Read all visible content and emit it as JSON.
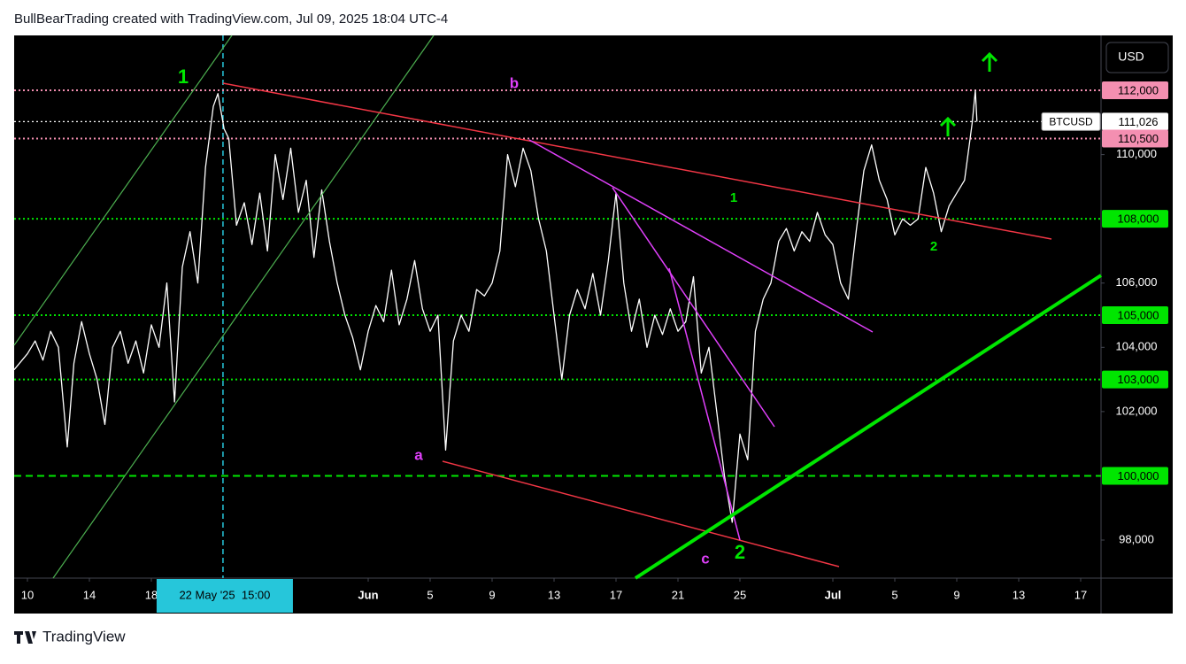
{
  "header": "BullBearTrading created with TradingView.com, Jul 09, 2025 18:04 UTC-4",
  "footer": "TradingView",
  "currency_button": "USD",
  "annotations": [
    {
      "text": "1"
    },
    {
      "text": "b"
    },
    {
      "text": "1"
    },
    {
      "text": "2"
    },
    {
      "text": "a"
    },
    {
      "text": "c"
    },
    {
      "text": "2"
    }
  ],
  "chart_data": {
    "type": "line",
    "x": [
      -0.86,
      0,
      0.5,
      1,
      1.5,
      2,
      2.57,
      3,
      3.5,
      4,
      4.5,
      5,
      5.5,
      6,
      6.5,
      7,
      7.5,
      8,
      8.5,
      9,
      9.5,
      10,
      10.5,
      11,
      11.5,
      12,
      12.3,
      12.7,
      13,
      13.5,
      14,
      14.5,
      15,
      15.5,
      16,
      16.5,
      17,
      17.5,
      18,
      18.5,
      19,
      19.5,
      20,
      20.5,
      21,
      21.5,
      22,
      22.5,
      23,
      23.5,
      24,
      24.5,
      25,
      25.5,
      26,
      26.5,
      27,
      27.5,
      28,
      28.5,
      29,
      29.5,
      30,
      30.5,
      31,
      31.5,
      32,
      32.5,
      33,
      33.5,
      34,
      34.5,
      35,
      35.5,
      36,
      36.5,
      37,
      37.5,
      38,
      38.5,
      39,
      39.5,
      40,
      40.5,
      41,
      41.5,
      42,
      42.5,
      43,
      43.5,
      44,
      44.5,
      45,
      45.5,
      46,
      46.5,
      47,
      47.5,
      48,
      48.5,
      49,
      49.5,
      50,
      50.5,
      51,
      51.5,
      52,
      52.5,
      53,
      53.5,
      54,
      54.5,
      55,
      55.5,
      56,
      56.5,
      57,
      57.5,
      58,
      58.5,
      59,
      59.5,
      60,
      60.5,
      61,
      61.2,
      61.3
    ],
    "series": [
      {
        "name": "BTCUSD",
        "color": "#ffffff",
        "values": [
          103300,
          103800,
          104200,
          103600,
          104500,
          104000,
          100900,
          103500,
          104800,
          103800,
          103000,
          101600,
          104000,
          104500,
          103500,
          104200,
          103200,
          104700,
          104000,
          106000,
          102300,
          106500,
          107600,
          106000,
          109600,
          111500,
          111900,
          110800,
          110500,
          107800,
          108500,
          107200,
          108800,
          107000,
          110000,
          108600,
          110200,
          108200,
          109200,
          106800,
          108900,
          107300,
          106000,
          105000,
          104300,
          103300,
          104500,
          105300,
          104800,
          106400,
          104700,
          105500,
          106700,
          105200,
          104500,
          105000,
          100800,
          104200,
          105000,
          104500,
          105800,
          105600,
          106000,
          107000,
          110000,
          109000,
          110200,
          109500,
          108000,
          107000,
          105000,
          103000,
          105000,
          105800,
          105200,
          106300,
          105000,
          106700,
          108800,
          106000,
          104500,
          105500,
          104000,
          105000,
          104400,
          105200,
          104500,
          104800,
          106200,
          103200,
          104000,
          102000,
          100000,
          98550,
          101300,
          100500,
          104500,
          105500,
          106000,
          107300,
          107700,
          107000,
          107600,
          107300,
          108200,
          107500,
          107200,
          106000,
          105500,
          107600,
          109500,
          110300,
          109200,
          108600,
          107500,
          108000,
          107800,
          108000,
          109600,
          108800,
          107600,
          108400,
          108800,
          109200,
          111000,
          112000,
          111026
        ]
      }
    ],
    "xlim": [
      -0.857,
      69.314
    ],
    "xticks": [
      {
        "value": 0,
        "label": "10"
      },
      {
        "value": 4,
        "label": "14"
      },
      {
        "value": 8,
        "label": "18"
      },
      {
        "value": 22,
        "label": "Jun"
      },
      {
        "value": 26,
        "label": "5"
      },
      {
        "value": 30,
        "label": "9"
      },
      {
        "value": 34,
        "label": "13"
      },
      {
        "value": 38,
        "label": "17"
      },
      {
        "value": 42,
        "label": "21"
      },
      {
        "value": 46,
        "label": "25"
      },
      {
        "value": 52,
        "label": "Jul"
      },
      {
        "value": 56,
        "label": "5"
      },
      {
        "value": 60,
        "label": "9"
      },
      {
        "value": 64,
        "label": "13"
      },
      {
        "value": 68,
        "label": "17"
      }
    ],
    "ylim": [
      96815,
      113710
    ],
    "yticks": [
      {
        "value": 98000,
        "label": "98,000"
      },
      {
        "value": 102000,
        "label": "102,000"
      },
      {
        "value": 104000,
        "label": "104,000"
      },
      {
        "value": 106000,
        "label": "106,000"
      },
      {
        "value": 110000,
        "label": "110,000"
      }
    ],
    "hlines": [
      {
        "value": 112000,
        "label": "112,000",
        "color": "#f48fb1",
        "style": "dotted"
      },
      {
        "value": 111026,
        "label": "111,026",
        "color": "#ffffff",
        "style": "dotted"
      },
      {
        "value": 110500,
        "label": "110,500",
        "color": "#f48fb1",
        "style": "dotted"
      },
      {
        "value": 108000,
        "label": "108,000",
        "color": "#00e600",
        "style": "dotted"
      },
      {
        "value": 105000,
        "label": "105,000",
        "color": "#00e600",
        "style": "dotted"
      },
      {
        "value": 103000,
        "label": "103,000",
        "color": "#00e600",
        "style": "dotted"
      },
      {
        "value": 100000,
        "label": "100,000",
        "color": "#00e600",
        "style": "dashed"
      }
    ],
    "crosshair": {
      "x": 12.625,
      "label": "22 May '25  15:00"
    }
  }
}
